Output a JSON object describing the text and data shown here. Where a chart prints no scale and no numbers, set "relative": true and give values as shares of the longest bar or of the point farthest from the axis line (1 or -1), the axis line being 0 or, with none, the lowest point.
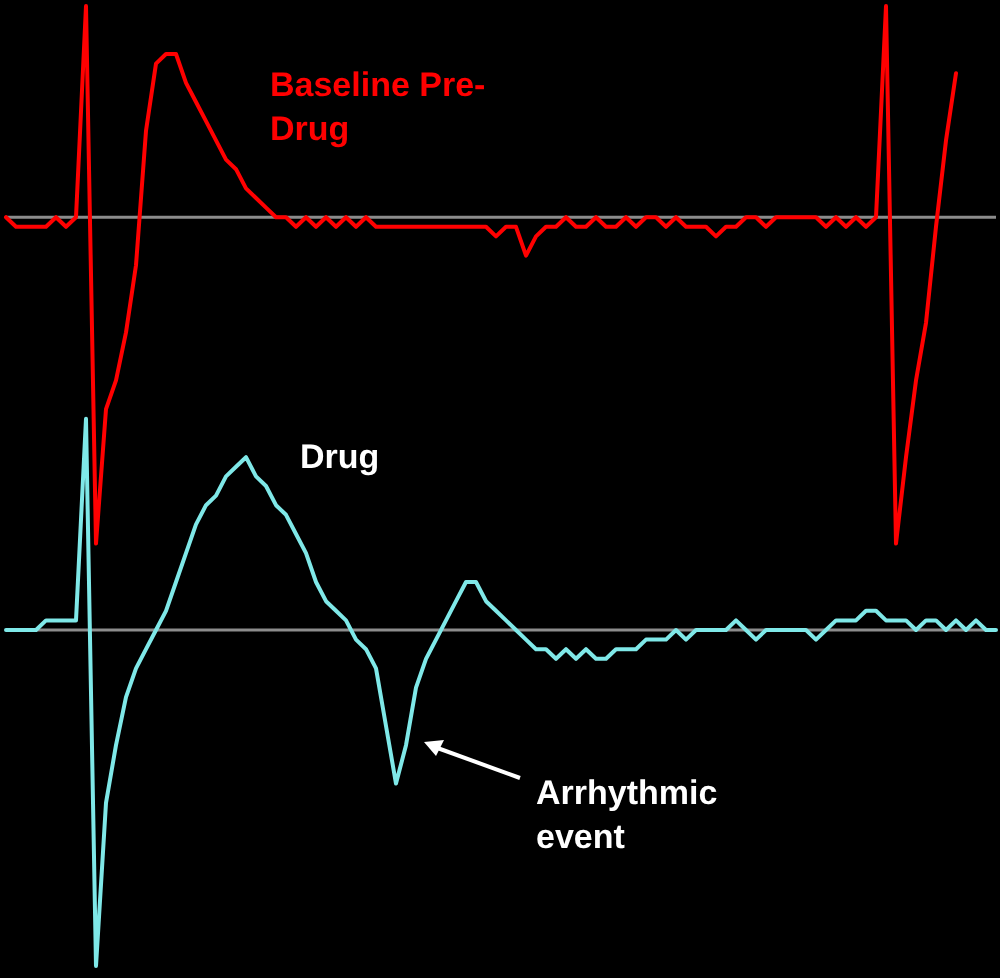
{
  "chart_data": {
    "type": "line",
    "relative": true,
    "legend": false,
    "categories": [
      null,
      null,
      null,
      null,
      null,
      null,
      null,
      null,
      null,
      null,
      null,
      null,
      null,
      null,
      null,
      null,
      null,
      null,
      null,
      null,
      null,
      null,
      null,
      null,
      null,
      null,
      null,
      null,
      null,
      null,
      null,
      null,
      null,
      null,
      null,
      null,
      null,
      null,
      null,
      null,
      null,
      null,
      null,
      null,
      null,
      null,
      null,
      null,
      null,
      null,
      null,
      null,
      null,
      null,
      null,
      null,
      null,
      null,
      null,
      null,
      null,
      null,
      null,
      null,
      null,
      null,
      null,
      null,
      null,
      null,
      null,
      null,
      null,
      null,
      null,
      null,
      null,
      null,
      null,
      null,
      null,
      null,
      null,
      null,
      null,
      null,
      null,
      null,
      null,
      null,
      null,
      null,
      null,
      null,
      null,
      null,
      null,
      null,
      null,
      null
    ],
    "series": [
      {
        "name": "Baseline Pre-Drug",
        "color": "#ff0000",
        "values": [
          0.78,
          0.77,
          0.77,
          0.77,
          0.77,
          0.78,
          0.77,
          0.78,
          1,
          0.44,
          0.58,
          0.61,
          0.66,
          0.73,
          0.87,
          0.94,
          0.95,
          0.95,
          0.92,
          0.9,
          0.88,
          0.86,
          0.84,
          0.83,
          0.81,
          0.8,
          0.79,
          0.78,
          0.78,
          0.77,
          0.78,
          0.77,
          0.78,
          0.77,
          0.78,
          0.77,
          0.78,
          0.77,
          0.77,
          0.77,
          0.77,
          0.77,
          0.77,
          0.77,
          0.77,
          0.77,
          0.77,
          0.77,
          0.77,
          0.76,
          0.77,
          0.77,
          0.74,
          0.76,
          0.77,
          0.77,
          0.78,
          0.77,
          0.77,
          0.78,
          0.77,
          0.77,
          0.78,
          0.77,
          0.78,
          0.78,
          0.77,
          0.78,
          0.77,
          0.77,
          0.77,
          0.76,
          0.77,
          0.77,
          0.78,
          0.78,
          0.77,
          0.78,
          0.78,
          0.78,
          0.78,
          0.78,
          0.77,
          0.78,
          0.77,
          0.78,
          0.77,
          0.78,
          1,
          0.44,
          0.53,
          0.61,
          0.67,
          0.77,
          0.86,
          0.93,
          null,
          null,
          null,
          null
        ]
      },
      {
        "name": "Drug",
        "color": "#7fe8e8",
        "values": [
          0.35,
          0.35,
          0.35,
          0.35,
          0.36,
          0.36,
          0.36,
          0.36,
          0.57,
          0,
          0.17,
          0.23,
          0.28,
          0.31,
          0.33,
          0.35,
          0.37,
          0.4,
          0.43,
          0.46,
          0.48,
          0.49,
          0.51,
          0.52,
          0.53,
          0.51,
          0.5,
          0.48,
          0.47,
          0.45,
          0.43,
          0.4,
          0.38,
          0.37,
          0.36,
          0.34,
          0.33,
          0.31,
          0.25,
          0.19,
          0.23,
          0.29,
          0.32,
          0.34,
          0.36,
          0.38,
          0.4,
          0.4,
          0.38,
          0.37,
          0.36,
          0.35,
          0.34,
          0.33,
          0.33,
          0.32,
          0.33,
          0.32,
          0.33,
          0.32,
          0.32,
          0.33,
          0.33,
          0.33,
          0.34,
          0.34,
          0.34,
          0.35,
          0.34,
          0.35,
          0.35,
          0.35,
          0.35,
          0.36,
          0.35,
          0.34,
          0.35,
          0.35,
          0.35,
          0.35,
          0.35,
          0.34,
          0.35,
          0.36,
          0.36,
          0.36,
          0.37,
          0.37,
          0.36,
          0.36,
          0.36,
          0.35,
          0.36,
          0.36,
          0.35,
          0.36,
          0.35,
          0.36,
          0.35,
          0.35
        ]
      }
    ],
    "ref_lines": [
      {
        "axis": "y",
        "value": 0.78,
        "color": "#8c8c8c"
      },
      {
        "axis": "y",
        "value": 0.35,
        "color": "#8c8c8c"
      }
    ],
    "annotations": [
      "Arrhythmic event"
    ]
  }
}
